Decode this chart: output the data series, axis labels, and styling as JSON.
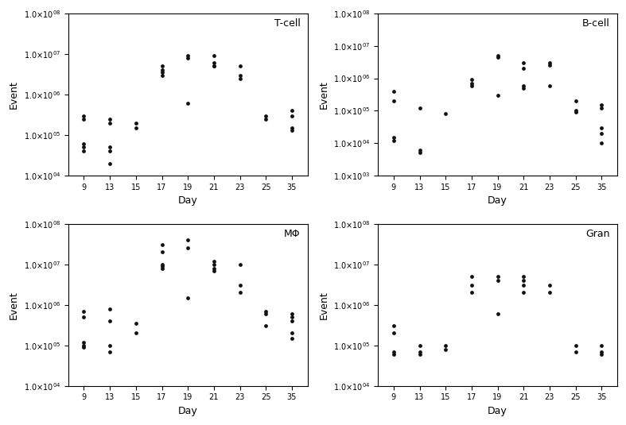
{
  "panels": [
    {
      "title": "T-cell",
      "ylim": [
        10000.0,
        100000000.0
      ],
      "yticks": [
        10000.0,
        100000.0,
        1000000.0,
        10000000.0,
        100000000.0
      ],
      "data": {
        "9": [
          300000.0,
          250000.0,
          60000.0,
          50000.0,
          40000.0
        ],
        "13": [
          250000.0,
          200000.0,
          50000.0,
          40000.0,
          20000.0
        ],
        "15": [
          200000.0,
          150000.0
        ],
        "17": [
          5000000.0,
          4000000.0,
          3500000.0,
          3000000.0
        ],
        "19": [
          9000000.0,
          8000000.0,
          600000.0
        ],
        "21": [
          9000000.0,
          6000000.0,
          5000000.0,
          5000000.0
        ],
        "23": [
          5000000.0,
          3000000.0,
          2500000.0
        ],
        "25": [
          300000.0,
          250000.0
        ],
        "35": [
          400000.0,
          300000.0,
          150000.0,
          130000.0
        ]
      }
    },
    {
      "title": "B-cell",
      "ylim": [
        1000.0,
        100000000.0
      ],
      "yticks": [
        1000.0,
        10000.0,
        100000.0,
        1000000.0,
        10000000.0,
        100000000.0
      ],
      "data": {
        "9": [
          400000.0,
          200000.0,
          15000.0,
          12000.0
        ],
        "13": [
          120000.0,
          6000.0,
          5000.0
        ],
        "15": [
          80000.0
        ],
        "17": [
          900000.0,
          700000.0,
          600000.0
        ],
        "19": [
          5000000.0,
          4500000.0,
          300000.0
        ],
        "21": [
          3000000.0,
          2000000.0,
          600000.0,
          500000.0
        ],
        "23": [
          3000000.0,
          2500000.0,
          600000.0
        ],
        "25": [
          200000.0,
          100000.0,
          90000.0
        ],
        "35": [
          150000.0,
          120000.0,
          30000.0,
          20000.0,
          10000.0
        ]
      }
    },
    {
      "title": "MΦ",
      "ylim": [
        10000.0,
        100000000.0
      ],
      "yticks": [
        10000.0,
        100000.0,
        1000000.0,
        10000000.0,
        100000000.0
      ],
      "data": {
        "9": [
          700000.0,
          500000.0,
          120000.0,
          100000.0,
          90000.0
        ],
        "13": [
          800000.0,
          400000.0,
          100000.0,
          70000.0
        ],
        "15": [
          350000.0,
          200000.0
        ],
        "17": [
          30000000.0,
          20000000.0,
          10000000.0,
          9000000.0,
          8000000.0
        ],
        "19": [
          40000000.0,
          25000000.0,
          1500000.0
        ],
        "21": [
          12000000.0,
          10000000.0,
          8000000.0,
          7000000.0
        ],
        "23": [
          10000000.0,
          3000000.0,
          2000000.0
        ],
        "25": [
          700000.0,
          600000.0,
          300000.0
        ],
        "35": [
          600000.0,
          500000.0,
          400000.0,
          200000.0,
          150000.0
        ]
      }
    },
    {
      "title": "Gran",
      "ylim": [
        10000.0,
        100000000.0
      ],
      "yticks": [
        10000.0,
        100000.0,
        1000000.0,
        10000000.0,
        100000000.0
      ],
      "data": {
        "9": [
          300000.0,
          200000.0,
          70000.0,
          60000.0
        ],
        "13": [
          100000.0,
          70000.0,
          60000.0
        ],
        "15": [
          100000.0,
          80000.0
        ],
        "17": [
          5000000.0,
          3000000.0,
          2000000.0
        ],
        "19": [
          5000000.0,
          4000000.0,
          600000.0
        ],
        "21": [
          5000000.0,
          4000000.0,
          3000000.0,
          2000000.0
        ],
        "23": [
          3000000.0,
          2000000.0
        ],
        "25": [
          100000.0,
          70000.0
        ],
        "35": [
          100000.0,
          70000.0,
          60000.0
        ]
      }
    }
  ],
  "xtick_labels": [
    "9",
    "13",
    "15",
    "17",
    "19",
    "21",
    "23",
    "25",
    "35"
  ],
  "xtick_positions": [
    9,
    13,
    15,
    17,
    19,
    21,
    23,
    25,
    35
  ],
  "dot_color": "#111111",
  "dot_size": 12,
  "xlabel": "Day",
  "ylabel": "Event",
  "bg_color": "#ffffff",
  "label_fontsize": 9,
  "tick_fontsize": 7,
  "title_fontsize": 9
}
